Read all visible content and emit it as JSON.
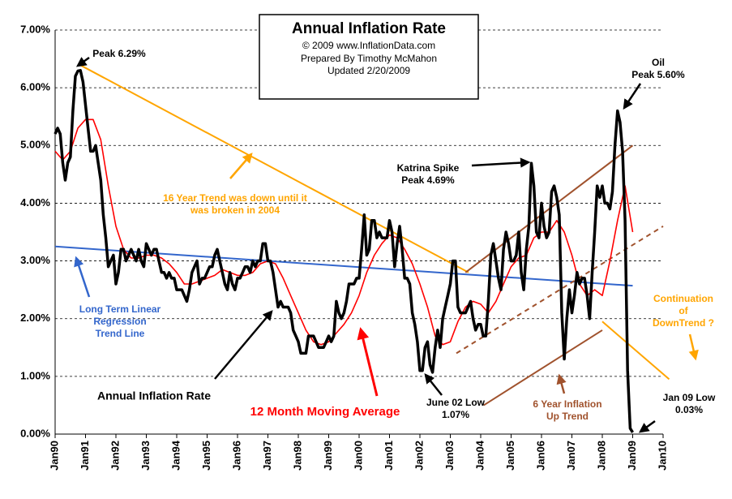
{
  "chart_data": {
    "type": "line",
    "title": "Annual  Inflation Rate",
    "subtitle": [
      "© 2009  www.InflationData.com",
      "Prepared By Timothy McMahon",
      "Updated 2/20/2009"
    ],
    "xlim": [
      1990,
      2010
    ],
    "xticks": [
      {
        "value": 1990,
        "label": "Jan90"
      },
      {
        "value": 1991,
        "label": "Jan91"
      },
      {
        "value": 1992,
        "label": "Jan92"
      },
      {
        "value": 1993,
        "label": "Jan93"
      },
      {
        "value": 1994,
        "label": "Jan94"
      },
      {
        "value": 1995,
        "label": "Jan95"
      },
      {
        "value": 1996,
        "label": "Jan96"
      },
      {
        "value": 1997,
        "label": "Jan97"
      },
      {
        "value": 1998,
        "label": "Jan98"
      },
      {
        "value": 1999,
        "label": "Jan99"
      },
      {
        "value": 2000,
        "label": "Jan00"
      },
      {
        "value": 2001,
        "label": "Jan01"
      },
      {
        "value": 2002,
        "label": "Jan02"
      },
      {
        "value": 2003,
        "label": "Jan03"
      },
      {
        "value": 2004,
        "label": "Jan04"
      },
      {
        "value": 2005,
        "label": "Jan05"
      },
      {
        "value": 2006,
        "label": "Jan06"
      },
      {
        "value": 2007,
        "label": "Jan07"
      },
      {
        "value": 2008,
        "label": "Jan08"
      },
      {
        "value": 2009,
        "label": "Jan09"
      },
      {
        "value": 2010,
        "label": "Jan10"
      }
    ],
    "ylim": [
      0,
      7
    ],
    "yticks": [
      {
        "value": 0,
        "label": "0.00%"
      },
      {
        "value": 1,
        "label": "1.00%"
      },
      {
        "value": 2,
        "label": "2.00%"
      },
      {
        "value": 3,
        "label": "3.00%"
      },
      {
        "value": 4,
        "label": "4.00%"
      },
      {
        "value": 5,
        "label": "5.00%"
      },
      {
        "value": 6,
        "label": "6.00%"
      },
      {
        "value": 7,
        "label": "7.00%"
      }
    ],
    "grid": true,
    "x": [
      1990,
      1990.083,
      1990.167,
      1990.25,
      1990.333,
      1990.417,
      1990.5,
      1990.583,
      1990.667,
      1990.75,
      1990.833,
      1990.917,
      1991,
      1991.083,
      1991.167,
      1991.25,
      1991.333,
      1991.417,
      1991.5,
      1991.583,
      1991.667,
      1991.75,
      1991.833,
      1991.917,
      1992,
      1992.083,
      1992.167,
      1992.25,
      1992.333,
      1992.417,
      1992.5,
      1992.583,
      1992.667,
      1992.75,
      1992.833,
      1992.917,
      1993,
      1993.083,
      1993.167,
      1993.25,
      1993.333,
      1993.417,
      1993.5,
      1993.583,
      1993.667,
      1993.75,
      1993.833,
      1993.917,
      1994,
      1994.083,
      1994.167,
      1994.25,
      1994.333,
      1994.417,
      1994.5,
      1994.583,
      1994.667,
      1994.75,
      1994.833,
      1994.917,
      1995,
      1995.083,
      1995.167,
      1995.25,
      1995.333,
      1995.417,
      1995.5,
      1995.583,
      1995.667,
      1995.75,
      1995.833,
      1995.917,
      1996,
      1996.083,
      1996.167,
      1996.25,
      1996.333,
      1996.417,
      1996.5,
      1996.583,
      1996.667,
      1996.75,
      1996.833,
      1996.917,
      1997,
      1997.083,
      1997.167,
      1997.25,
      1997.333,
      1997.417,
      1997.5,
      1997.583,
      1997.667,
      1997.75,
      1997.833,
      1997.917,
      1998,
      1998.083,
      1998.167,
      1998.25,
      1998.333,
      1998.417,
      1998.5,
      1998.583,
      1998.667,
      1998.75,
      1998.833,
      1998.917,
      1999,
      1999.083,
      1999.167,
      1999.25,
      1999.333,
      1999.417,
      1999.5,
      1999.583,
      1999.667,
      1999.75,
      1999.833,
      1999.917,
      2000,
      2000.083,
      2000.167,
      2000.25,
      2000.333,
      2000.417,
      2000.5,
      2000.583,
      2000.667,
      2000.75,
      2000.833,
      2000.917,
      2001,
      2001.083,
      2001.167,
      2001.25,
      2001.333,
      2001.417,
      2001.5,
      2001.583,
      2001.667,
      2001.75,
      2001.833,
      2001.917,
      2002,
      2002.083,
      2002.167,
      2002.25,
      2002.333,
      2002.417,
      2002.5,
      2002.583,
      2002.667,
      2002.75,
      2002.833,
      2002.917,
      2003,
      2003.083,
      2003.167,
      2003.25,
      2003.333,
      2003.417,
      2003.5,
      2003.583,
      2003.667,
      2003.75,
      2003.833,
      2003.917,
      2004,
      2004.083,
      2004.167,
      2004.25,
      2004.333,
      2004.417,
      2004.5,
      2004.583,
      2004.667,
      2004.75,
      2004.833,
      2004.917,
      2005,
      2005.083,
      2005.167,
      2005.25,
      2005.333,
      2005.417,
      2005.5,
      2005.583,
      2005.667,
      2005.75,
      2005.833,
      2005.917,
      2006,
      2006.083,
      2006.167,
      2006.25,
      2006.333,
      2006.417,
      2006.5,
      2006.583,
      2006.667,
      2006.75,
      2006.833,
      2006.917,
      2007,
      2007.083,
      2007.167,
      2007.25,
      2007.333,
      2007.417,
      2007.5,
      2007.583,
      2007.667,
      2007.75,
      2007.833,
      2007.917,
      2008,
      2008.083,
      2008.167,
      2008.25,
      2008.333,
      2008.417,
      2008.5,
      2008.583,
      2008.667,
      2008.75,
      2008.833,
      2008.917,
      2009
    ],
    "series": [
      {
        "name": "Annual Inflation Rate",
        "color": "#000000",
        "values": [
          5.2,
          5.3,
          5.2,
          4.7,
          4.4,
          4.7,
          4.8,
          5.6,
          6.2,
          6.29,
          6.3,
          6.1,
          5.7,
          5.3,
          4.9,
          4.9,
          5.0,
          4.7,
          4.4,
          3.8,
          3.4,
          2.9,
          3.0,
          3.1,
          2.6,
          2.8,
          3.2,
          3.2,
          3.0,
          3.1,
          3.2,
          3.1,
          3.0,
          3.2,
          3.0,
          2.9,
          3.3,
          3.2,
          3.1,
          3.2,
          3.2,
          3.0,
          2.8,
          2.8,
          2.7,
          2.8,
          2.7,
          2.7,
          2.5,
          2.5,
          2.5,
          2.4,
          2.3,
          2.5,
          2.8,
          2.9,
          3.0,
          2.6,
          2.7,
          2.7,
          2.8,
          2.9,
          2.9,
          3.1,
          3.2,
          3.0,
          2.8,
          2.6,
          2.5,
          2.8,
          2.6,
          2.5,
          2.7,
          2.7,
          2.8,
          2.9,
          2.9,
          2.8,
          3.0,
          2.9,
          3.0,
          3.0,
          3.3,
          3.3,
          3.0,
          3.0,
          2.8,
          2.5,
          2.2,
          2.3,
          2.2,
          2.2,
          2.2,
          2.1,
          1.8,
          1.7,
          1.6,
          1.4,
          1.4,
          1.4,
          1.7,
          1.7,
          1.7,
          1.6,
          1.5,
          1.5,
          1.5,
          1.6,
          1.7,
          1.6,
          1.7,
          2.3,
          2.1,
          2.0,
          2.1,
          2.3,
          2.6,
          2.6,
          2.6,
          2.7,
          2.7,
          3.2,
          3.8,
          3.1,
          3.2,
          3.7,
          3.7,
          3.4,
          3.5,
          3.4,
          3.4,
          3.4,
          3.7,
          3.5,
          2.9,
          3.3,
          3.6,
          3.2,
          2.7,
          2.7,
          2.6,
          2.1,
          1.9,
          1.6,
          1.1,
          1.1,
          1.5,
          1.6,
          1.2,
          1.07,
          1.5,
          1.8,
          1.5,
          2.0,
          2.2,
          2.4,
          2.6,
          3.0,
          3.0,
          2.2,
          2.1,
          2.1,
          2.1,
          2.2,
          2.3,
          2.0,
          1.8,
          1.9,
          1.9,
          1.7,
          1.7,
          2.3,
          3.1,
          3.3,
          3.0,
          2.7,
          2.5,
          3.2,
          3.5,
          3.3,
          3.0,
          3.0,
          3.1,
          3.5,
          2.8,
          2.5,
          3.2,
          3.6,
          4.69,
          4.3,
          3.5,
          3.4,
          4.0,
          3.6,
          3.4,
          3.5,
          4.2,
          4.3,
          4.1,
          3.8,
          2.1,
          1.3,
          2.0,
          2.5,
          2.1,
          2.4,
          2.8,
          2.6,
          2.7,
          2.7,
          2.4,
          2.0,
          2.8,
          3.5,
          4.3,
          4.1,
          4.3,
          4.0,
          4.0,
          3.9,
          4.2,
          5.0,
          5.6,
          5.4,
          4.9,
          3.7,
          1.1,
          0.1,
          0.03
        ]
      },
      {
        "name": "12 Month Moving Average",
        "color": "#ff0000",
        "x": [
          1990,
          1990.25,
          1990.5,
          1990.75,
          1991,
          1991.25,
          1991.5,
          1991.75,
          1992,
          1992.25,
          1992.5,
          1992.75,
          1993,
          1993.25,
          1993.5,
          1993.75,
          1994,
          1994.25,
          1994.5,
          1994.75,
          1995,
          1995.25,
          1995.5,
          1995.75,
          1996,
          1996.25,
          1996.5,
          1996.75,
          1997,
          1997.25,
          1997.5,
          1997.75,
          1998,
          1998.25,
          1998.5,
          1998.75,
          1999,
          1999.25,
          1999.5,
          1999.75,
          2000,
          2000.25,
          2000.5,
          2000.75,
          2001,
          2001.25,
          2001.5,
          2001.75,
          2002,
          2002.25,
          2002.5,
          2002.75,
          2003,
          2003.25,
          2003.5,
          2003.75,
          2004,
          2004.25,
          2004.5,
          2004.75,
          2005,
          2005.25,
          2005.5,
          2005.75,
          2006,
          2006.25,
          2006.5,
          2006.75,
          2007,
          2007.25,
          2007.5,
          2007.75,
          2008,
          2008.25,
          2008.5,
          2008.75,
          2009
        ],
        "values": [
          4.9,
          4.75,
          4.9,
          5.3,
          5.45,
          5.45,
          5.1,
          4.3,
          3.6,
          3.2,
          3.05,
          3.05,
          3.1,
          3.1,
          3.05,
          2.95,
          2.8,
          2.6,
          2.6,
          2.65,
          2.7,
          2.75,
          2.85,
          2.8,
          2.75,
          2.75,
          2.8,
          2.95,
          3.0,
          2.95,
          2.7,
          2.4,
          2.1,
          1.8,
          1.6,
          1.55,
          1.6,
          1.75,
          1.9,
          2.1,
          2.4,
          2.8,
          3.1,
          3.3,
          3.45,
          3.4,
          3.2,
          2.95,
          2.6,
          2.2,
          1.7,
          1.55,
          1.6,
          1.95,
          2.2,
          2.3,
          2.25,
          2.1,
          2.3,
          2.6,
          2.9,
          3.05,
          3.1,
          3.4,
          3.5,
          3.5,
          3.7,
          3.5,
          3.1,
          2.6,
          2.4,
          2.5,
          2.4,
          3.0,
          3.7,
          4.3,
          3.5
        ]
      }
    ],
    "trend_lines": [
      {
        "color": "#ffa500",
        "dash": false,
        "x": [
          1990.8,
          2003.6
        ],
        "values": [
          6.4,
          2.8
        ]
      },
      {
        "color": "#3366cc",
        "dash": false,
        "x": [
          1990,
          2009
        ],
        "values": [
          3.25,
          2.57
        ]
      },
      {
        "color": "#a0522d",
        "dash": false,
        "x": [
          2003.5,
          2009
        ],
        "values": [
          2.8,
          5.0
        ]
      },
      {
        "color": "#a0522d",
        "dash": true,
        "x": [
          2003.2,
          2010
        ],
        "values": [
          1.4,
          3.6
        ]
      },
      {
        "color": "#a0522d",
        "dash": false,
        "x": [
          2004.1,
          2008
        ],
        "values": [
          0.5,
          1.8
        ]
      },
      {
        "color": "#ffa500",
        "dash": false,
        "x": [
          2008,
          2010.2
        ],
        "values": [
          1.95,
          0.95
        ]
      }
    ],
    "annotations": [
      {
        "lines": [
          "Peak 6.29%"
        ],
        "color": "#000000"
      },
      {
        "lines": [
          "Oil",
          "Peak 5.60%"
        ],
        "color": "#000000"
      },
      {
        "lines": [
          "Katrina Spike",
          "Peak 4.69%"
        ],
        "color": "#000000"
      },
      {
        "lines": [
          "16 Year Trend was down until it",
          "was broken in 2004"
        ],
        "color": "#ffa500"
      },
      {
        "lines": [
          "Long Term Linear",
          "Regression",
          "Trend Line"
        ],
        "color": "#3366cc"
      },
      {
        "lines": [
          "June 02 Low",
          "1.07%"
        ],
        "color": "#000000"
      },
      {
        "lines": [
          "6 Year Inflation",
          "Up Trend"
        ],
        "color": "#a0522d"
      },
      {
        "lines": [
          "Continuation",
          "of",
          "DownTrend ?"
        ],
        "color": "#ffa500"
      },
      {
        "lines": [
          "Jan 09 Low",
          "0.03%"
        ],
        "color": "#000000"
      }
    ]
  }
}
